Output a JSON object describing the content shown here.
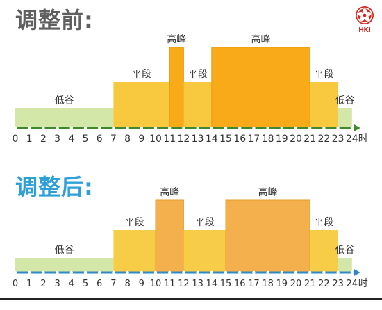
{
  "titles": {
    "before": "调整前:",
    "after": "调整后:"
  },
  "logo": {
    "text": "HKI"
  },
  "hour_unit": "时",
  "chart_data": [
    {
      "type": "timeline",
      "title": "调整前:",
      "axis_range": [
        0,
        24
      ],
      "ticks": [
        "0",
        "1",
        "2",
        "3",
        "4",
        "5",
        "6",
        "7",
        "8",
        "9",
        "10",
        "11",
        "12",
        "13",
        "14",
        "15",
        "16",
        "17",
        "18",
        "19",
        "20",
        "21",
        "22",
        "23",
        "24"
      ],
      "axis_color": "#3d8a2c",
      "periods": [
        {
          "label": "低谷",
          "start": 0,
          "end": 7,
          "level": 1
        },
        {
          "label": "平段",
          "start": 7,
          "end": 11,
          "level": 2
        },
        {
          "label": "高峰",
          "start": 11,
          "end": 12,
          "level": 3
        },
        {
          "label": "平段",
          "start": 12,
          "end": 14,
          "level": 2
        },
        {
          "label": "高峰",
          "start": 14,
          "end": 21,
          "level": 3
        },
        {
          "label": "平段",
          "start": 21,
          "end": 23,
          "level": 2
        },
        {
          "label": "低谷",
          "start": 23,
          "end": 24,
          "level": 1
        }
      ],
      "colors": {
        "1": "#d3e8a8",
        "2": "#f8c93f",
        "3": "#f8aa18",
        "border": "#e69a16"
      }
    },
    {
      "type": "timeline",
      "title": "调整后:",
      "axis_range": [
        0,
        24
      ],
      "ticks": [
        "0",
        "1",
        "2",
        "3",
        "4",
        "5",
        "6",
        "7",
        "8",
        "9",
        "10",
        "11",
        "12",
        "13",
        "14",
        "15",
        "16",
        "17",
        "18",
        "19",
        "20",
        "21",
        "22",
        "23",
        "24"
      ],
      "axis_color": "#2f89c8",
      "periods": [
        {
          "label": "低谷",
          "start": 0,
          "end": 7,
          "level": 1
        },
        {
          "label": "平段",
          "start": 7,
          "end": 10,
          "level": 2
        },
        {
          "label": "高峰",
          "start": 10,
          "end": 12,
          "level": 3
        },
        {
          "label": "平段",
          "start": 12,
          "end": 15,
          "level": 2
        },
        {
          "label": "高峰",
          "start": 15,
          "end": 21,
          "level": 3
        },
        {
          "label": "平段",
          "start": 21,
          "end": 23,
          "level": 2
        },
        {
          "label": "低谷",
          "start": 23,
          "end": 24,
          "level": 1
        }
      ],
      "colors": {
        "1": "#d3e8a8",
        "2": "#f7cd48",
        "3": "#f4b04c",
        "border": "#e79a2a"
      }
    }
  ]
}
